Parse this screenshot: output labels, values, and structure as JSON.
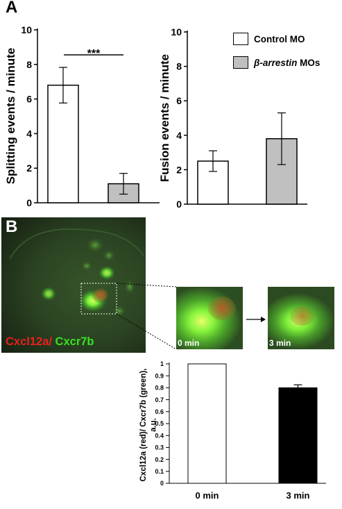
{
  "figure": {
    "panel_a_letter": "A",
    "panel_b_letter": "B",
    "significance": "***",
    "legend": [
      {
        "label": "Control MO",
        "italic_part": "",
        "color": "#ffffff"
      },
      {
        "label": " MOs",
        "italic_part": "β-arrestin",
        "color": "#c0c0c0"
      }
    ],
    "micrograph": {
      "label_red": "Cxcl12a/",
      "label_green": " Cxcr7b",
      "label_red_color": "#e8201c",
      "label_green_color": "#39e024",
      "inset_0_label": "0 min",
      "inset_3_label": "3 min",
      "arrow_icon": "right-arrow-icon"
    }
  },
  "chart_data": [
    {
      "type": "bar",
      "title": "",
      "xlabel": "",
      "ylabel": "Splitting events / minute",
      "ylim": [
        0,
        10
      ],
      "yticks": [
        "0",
        "2",
        "4",
        "6",
        "8",
        "10"
      ],
      "categories": [
        "Control MO",
        "β-arrestin MOs"
      ],
      "values": [
        6.8,
        1.1
      ],
      "errors": [
        1.03,
        0.6
      ],
      "colors": [
        "#ffffff",
        "#c0c0c0"
      ],
      "annotation": "***"
    },
    {
      "type": "bar",
      "title": "",
      "xlabel": "",
      "ylabel": "Fusion events / minute",
      "ylim": [
        0,
        10
      ],
      "yticks": [
        "0",
        "2",
        "4",
        "6",
        "8",
        "10"
      ],
      "categories": [
        "Control MO",
        "β-arrestin MOs"
      ],
      "values": [
        2.5,
        3.8
      ],
      "errors": [
        0.6,
        1.5
      ],
      "colors": [
        "#ffffff",
        "#c0c0c0"
      ]
    },
    {
      "type": "bar",
      "title": "",
      "xlabel": "",
      "ylabel": "Cxcl12a (red)/ Cxcr7b (green), a.u.",
      "ylim": [
        0,
        1
      ],
      "yticks": [
        "0",
        "0.1",
        "0.2",
        "0.3",
        "0.4",
        "0.5",
        "0.6",
        "0.7",
        "0.8",
        "0.9",
        "1"
      ],
      "categories": [
        "0 min",
        "3 min"
      ],
      "values": [
        1.0,
        0.8
      ],
      "errors": [
        0,
        0.025
      ],
      "colors": [
        "#ffffff",
        "#000000"
      ]
    }
  ]
}
